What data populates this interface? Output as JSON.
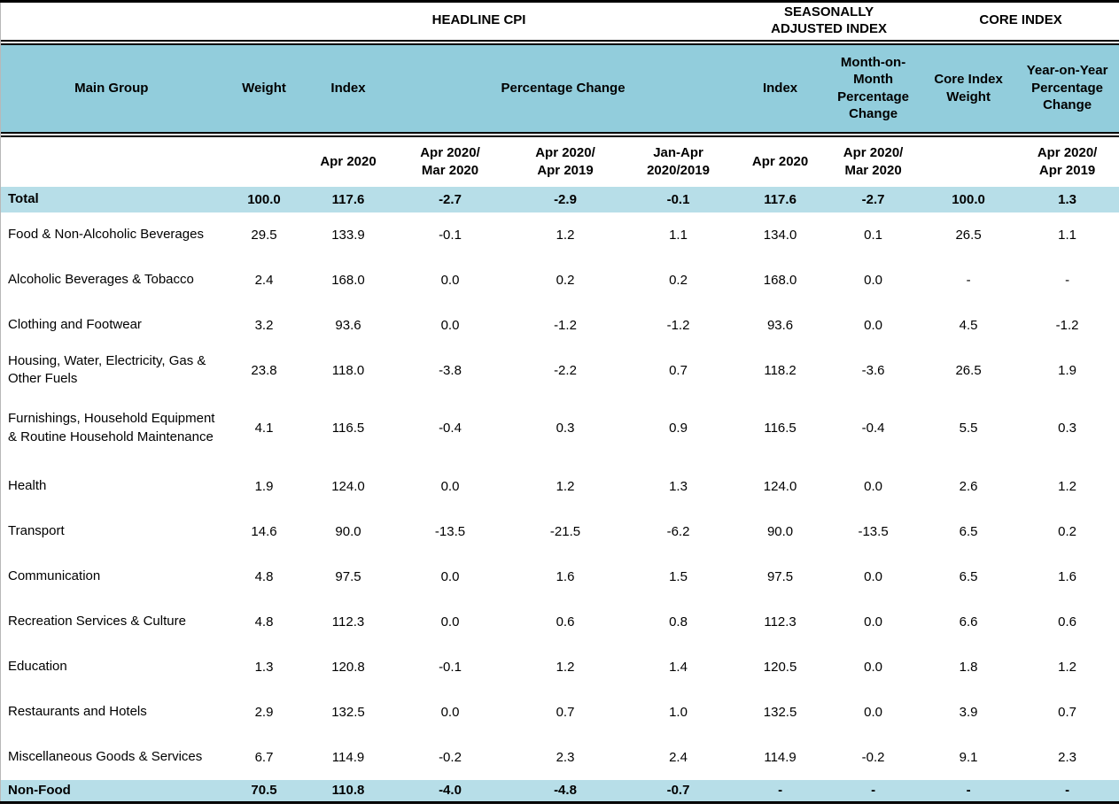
{
  "colors": {
    "header_bg": "#92CDDC",
    "highlight_row_bg": "#B7DEE8",
    "border": "#000000",
    "text": "#000000"
  },
  "header": {
    "group_headline": "HEADLINE CPI",
    "group_seasonal": "SEASONALLY\nADJUSTED INDEX",
    "group_core": "CORE INDEX",
    "main_group": "Main Group",
    "weight": "Weight",
    "index": "Index",
    "percentage_change": "Percentage Change",
    "sa_index": "Index",
    "mom_pct_change": "Month-on-Month Percentage Change",
    "core_index_weight": "Core Index Weight",
    "yoy_pct_change": "Year-on-Year Percentage Change",
    "sub_index_period": "Apr 2020",
    "sub_mom_period": "Apr 2020/\nMar 2020",
    "sub_yoy_period": "Apr 2020/\nApr 2019",
    "sub_ytd_period": "Jan-Apr\n2020/2019",
    "sub_sa_index_period": "Apr 2020",
    "sub_sa_mom_period": "Apr 2020/\nMar 2020",
    "sub_core_yoy_period": "Apr 2020/\nApr 2019"
  },
  "chart_data": {
    "type": "table",
    "columns": [
      "Main Group",
      "Weight",
      "Index Apr 2020",
      "Percentage Change Apr 2020/ Mar 2020",
      "Percentage Change Apr 2020/ Apr 2019",
      "Percentage Change Jan-Apr 2020/2019",
      "Seasonally Adjusted Index Apr 2020",
      "Seasonally Adjusted Month-on-Month Percentage Change Apr 2020/ Mar 2020",
      "Core Index Weight",
      "Core Index Year-on-Year Percentage Change Apr 2020/ Apr 2019"
    ],
    "rows": [
      {
        "name": "Total",
        "highlight": true,
        "values": [
          "100.0",
          "117.6",
          "-2.7",
          "-2.9",
          "-0.1",
          "117.6",
          "-2.7",
          "100.0",
          "1.3"
        ]
      },
      {
        "name": "Food & Non-Alcoholic Beverages",
        "highlight": false,
        "values": [
          "29.5",
          "133.9",
          "-0.1",
          "1.2",
          "1.1",
          "134.0",
          "0.1",
          "26.5",
          "1.1"
        ]
      },
      {
        "name": "Alcoholic Beverages & Tobacco",
        "highlight": false,
        "values": [
          "2.4",
          "168.0",
          "0.0",
          "0.2",
          "0.2",
          "168.0",
          "0.0",
          "-",
          "-"
        ]
      },
      {
        "name": "Clothing and Footwear",
        "highlight": false,
        "values": [
          "3.2",
          "93.6",
          "0.0",
          "-1.2",
          "-1.2",
          "93.6",
          "0.0",
          "4.5",
          "-1.2"
        ]
      },
      {
        "name": "Housing, Water, Electricity, Gas & Other Fuels",
        "highlight": false,
        "values": [
          "23.8",
          "118.0",
          "-3.8",
          "-2.2",
          "0.7",
          "118.2",
          "-3.6",
          "26.5",
          "1.9"
        ]
      },
      {
        "name": "Furnishings, Household Equipment  & Routine Household Maintenance",
        "highlight": false,
        "tall": true,
        "values": [
          "4.1",
          "116.5",
          "-0.4",
          "0.3",
          "0.9",
          "116.5",
          "-0.4",
          "5.5",
          "0.3"
        ]
      },
      {
        "name": "Health",
        "highlight": false,
        "values": [
          "1.9",
          "124.0",
          "0.0",
          "1.2",
          "1.3",
          "124.0",
          "0.0",
          "2.6",
          "1.2"
        ]
      },
      {
        "name": "Transport",
        "highlight": false,
        "values": [
          "14.6",
          "90.0",
          "-13.5",
          "-21.5",
          "-6.2",
          "90.0",
          "-13.5",
          "6.5",
          "0.2"
        ]
      },
      {
        "name": "Communication",
        "highlight": false,
        "values": [
          "4.8",
          "97.5",
          "0.0",
          "1.6",
          "1.5",
          "97.5",
          "0.0",
          "6.5",
          "1.6"
        ]
      },
      {
        "name": "Recreation Services & Culture",
        "highlight": false,
        "values": [
          "4.8",
          "112.3",
          "0.0",
          "0.6",
          "0.8",
          "112.3",
          "0.0",
          "6.6",
          "0.6"
        ]
      },
      {
        "name": "Education",
        "highlight": false,
        "values": [
          "1.3",
          "120.8",
          "-0.1",
          "1.2",
          "1.4",
          "120.5",
          "0.0",
          "1.8",
          "1.2"
        ]
      },
      {
        "name": "Restaurants and Hotels",
        "highlight": false,
        "values": [
          "2.9",
          "132.5",
          "0.0",
          "0.7",
          "1.0",
          "132.5",
          "0.0",
          "3.9",
          "0.7"
        ]
      },
      {
        "name": "Miscellaneous Goods & Services",
        "highlight": false,
        "values": [
          "6.7",
          "114.9",
          "-0.2",
          "2.3",
          "2.4",
          "114.9",
          "-0.2",
          "9.1",
          "2.3"
        ]
      },
      {
        "name": "Non-Food",
        "highlight": true,
        "values": [
          "70.5",
          "110.8",
          "-4.0",
          "-4.8",
          "-0.7",
          "-",
          "-",
          "-",
          "-"
        ]
      }
    ]
  }
}
